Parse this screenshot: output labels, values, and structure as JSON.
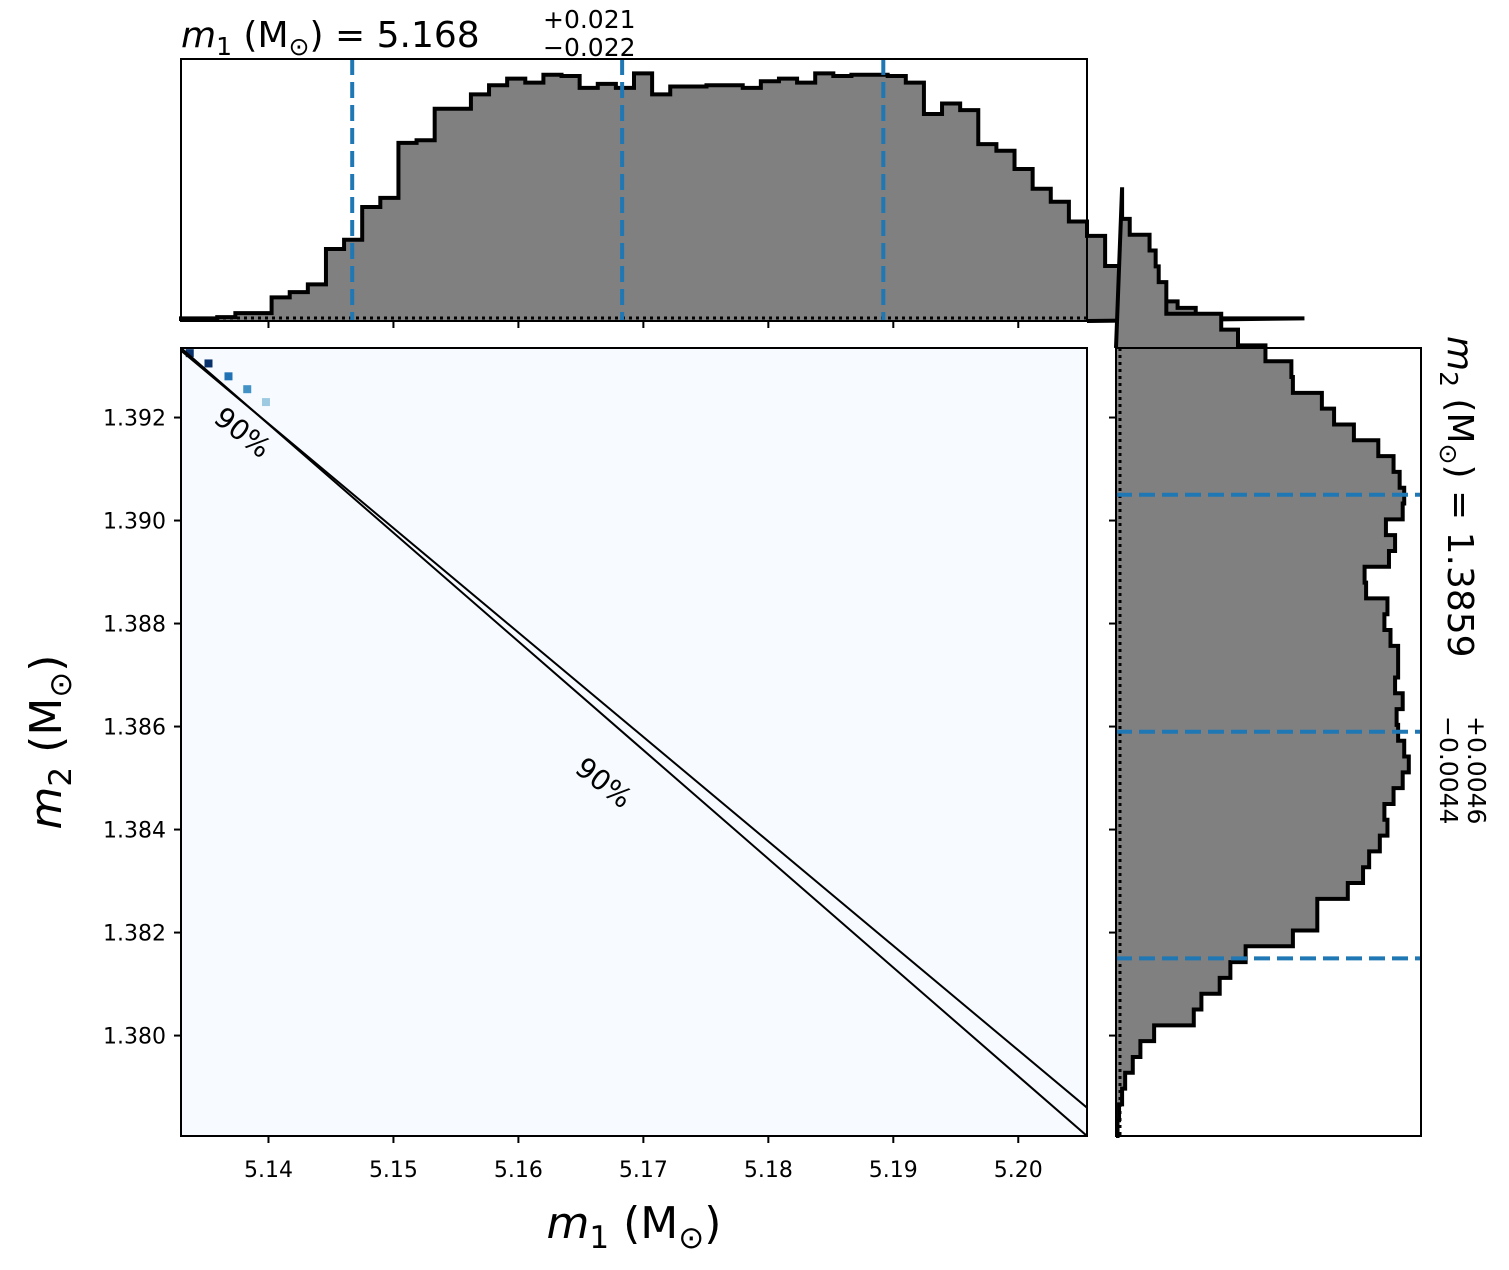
{
  "chart_data": [
    {
      "type": "histogram",
      "panel": "m1-marginal",
      "title": {
        "symbol": "m",
        "sub": "1",
        "unit_open": " (M",
        "unit_sym": "⊙",
        "unit_close": ") = 5.168",
        "sup": "+0.021",
        "inf": "−0.022"
      },
      "xlim": [
        5.133,
        5.2055
      ],
      "bin_edges_start": 5.133,
      "bin_width": 0.00145,
      "counts": [
        0.2,
        0.2,
        0.3,
        0.6,
        0.6,
        1.8,
        2.2,
        2.8,
        5.5,
        6.2,
        8.7,
        9.4,
        13.6,
        13.8,
        16.2,
        16.2,
        17.3,
        18.0,
        18.5,
        18.2,
        18.8,
        18.7,
        17.8,
        18.1,
        17.8,
        18.9,
        17.3,
        17.9,
        17.9,
        18.0,
        18.0,
        17.8,
        18.3,
        18.5,
        18.2,
        18.9,
        18.7,
        18.8,
        18.8,
        18.7,
        18.2,
        15.8,
        16.6,
        16.1,
        13.5,
        13.0,
        11.6,
        10.1,
        9.1,
        7.6,
        6.5,
        4.2,
        3.3,
        2.9,
        1.5,
        1.0,
        0.4,
        0.2,
        0.2,
        0.2,
        0.2,
        0.2
      ],
      "ylim": [
        0,
        20
      ],
      "quantiles": [
        5.1467,
        5.1683,
        5.1892
      ],
      "quantile_color": "#1f77b4",
      "fill_color": "#808080"
    },
    {
      "type": "heatmap",
      "panel": "joint",
      "x_tick_labels": [
        "5.14",
        "5.15",
        "5.16",
        "5.17",
        "5.18",
        "5.19",
        "5.20"
      ],
      "x_ticks": [
        5.14,
        5.15,
        5.16,
        5.17,
        5.18,
        5.19,
        5.2
      ],
      "y_tick_labels": [
        "1.392",
        "1.390",
        "1.388",
        "1.386",
        "1.384",
        "1.382",
        "1.380"
      ],
      "y_ticks": [
        1.392,
        1.39,
        1.388,
        1.386,
        1.384,
        1.382,
        1.38
      ],
      "xlim": [
        5.133,
        5.2055
      ],
      "ylim": [
        1.37805,
        1.39335
      ],
      "xlabel": {
        "symbol": "m",
        "sub": "1",
        "unit_open": " (M",
        "unit_sym": "⊙",
        "unit_close": ")"
      },
      "ylabel": {
        "symbol": "m",
        "sub": "2",
        "unit_open": " (M",
        "unit_sym": "⊙",
        "unit_close": ")"
      },
      "background_color": "#f7fbff",
      "contour_lines": [
        {
          "x": [
            5.133,
            5.2055
          ],
          "y": [
            1.3933,
            1.3786
          ]
        },
        {
          "x": [
            5.133,
            5.2055
          ],
          "y": [
            1.39335,
            1.37805
          ]
        }
      ],
      "contour_labels": [
        {
          "text": "90%",
          "x": 5.1379,
          "y": 1.3917,
          "rotation": 38
        },
        {
          "text": "90%",
          "x": 5.1668,
          "y": 1.3849,
          "rotation": 38
        }
      ],
      "hot_cells": [
        {
          "x": 5.1337,
          "y": 1.39325,
          "color": "#08306b"
        },
        {
          "x": 5.1352,
          "y": 1.39305,
          "color": "#08306b"
        },
        {
          "x": 5.1368,
          "y": 1.3928,
          "color": "#2171b5"
        },
        {
          "x": 5.1383,
          "y": 1.39255,
          "color": "#4292c6"
        },
        {
          "x": 5.1398,
          "y": 1.3923,
          "color": "#9ecae1"
        }
      ]
    },
    {
      "type": "histogram",
      "panel": "m2-marginal",
      "orientation": "horizontal",
      "title": {
        "symbol": "m",
        "sub": "2",
        "unit_open": " (M",
        "unit_sym": "⊙",
        "unit_close": ") = 1.3859",
        "sup": "+0.0046",
        "inf": "−0.0044"
      },
      "ylim": [
        1.37805,
        1.39335
      ],
      "bin_edges_start": 1.37805,
      "bin_width": 0.000307,
      "counts": [
        0.1,
        0.2,
        0.4,
        0.6,
        1.1,
        1.6,
        2.5,
        5.1,
        5.6,
        6.8,
        7.5,
        8.5,
        11.6,
        13.2,
        13.2,
        15.2,
        16.2,
        16.6,
        17.3,
        17.8,
        17.6,
        18.2,
        18.8,
        19.2,
        18.9,
        18.5,
        18.4,
        18.8,
        18.3,
        18.5,
        18.5,
        18.0,
        17.6,
        17.8,
        16.4,
        16.3,
        17.9,
        18.3,
        17.7,
        18.8,
        18.9,
        18.6,
        18.2,
        17.2,
        15.6,
        14.3,
        13.5,
        11.6,
        11.5,
        9.8,
        8.0,
        6.9,
        3.3,
        3.3,
        2.8,
        2.6,
        2.2,
        0.9,
        0.4,
        0.4
      ],
      "xlim": [
        0,
        20
      ],
      "quantiles": [
        1.3815,
        1.3859,
        1.3905
      ],
      "quantile_color": "#1f77b4",
      "fill_color": "#808080"
    }
  ]
}
